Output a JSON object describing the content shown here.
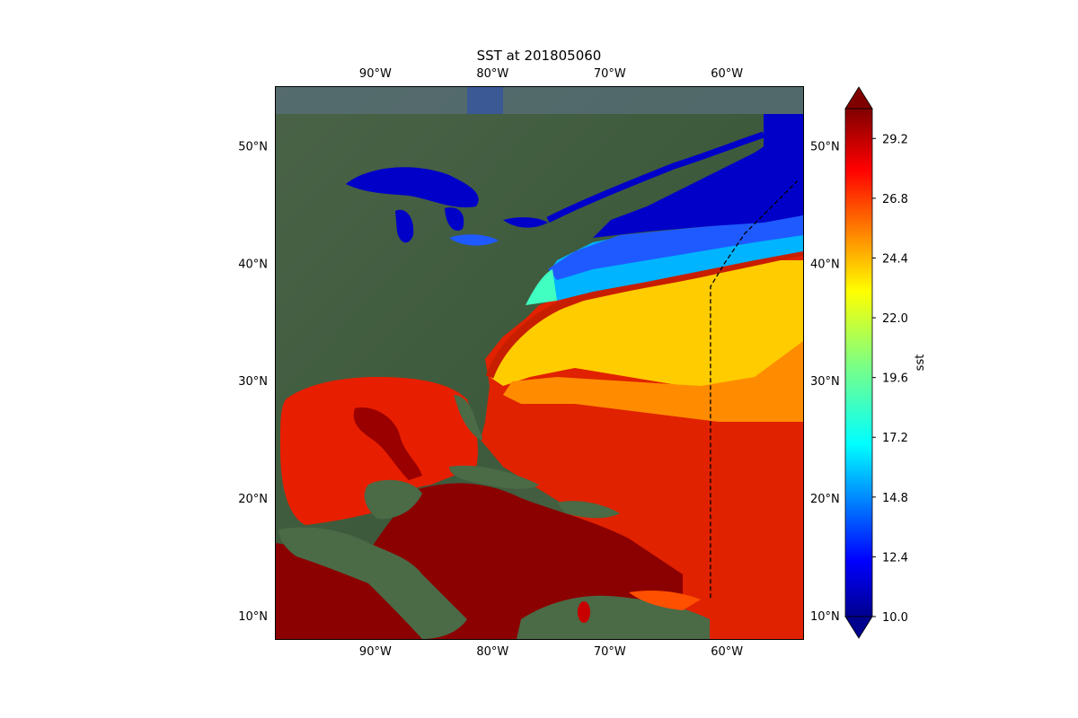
{
  "title": "SST at 201805060",
  "map": {
    "lon_range": [
      -98.5,
      -53.5
    ],
    "lat_range": [
      8,
      55
    ],
    "projection": "PlateCarree",
    "basemap": "satellite imagery (land), field overlay on ocean",
    "lon_ticks": [
      {
        "value": -90,
        "label": "90°W"
      },
      {
        "value": -80,
        "label": "80°W"
      },
      {
        "value": -70,
        "label": "70°W"
      },
      {
        "value": -60,
        "label": "60°W"
      }
    ],
    "lat_ticks": [
      {
        "value": 10,
        "label": "10°N"
      },
      {
        "value": 20,
        "label": "20°N"
      },
      {
        "value": 30,
        "label": "30°N"
      },
      {
        "value": 40,
        "label": "40°N"
      },
      {
        "value": 50,
        "label": "50°N"
      }
    ],
    "track": {
      "style": "dashed",
      "color": "#000000",
      "points": [
        [
          -61.4,
          11.5
        ],
        [
          -61.4,
          38.0
        ],
        [
          -60.2,
          40.0
        ],
        [
          -58.5,
          42.5
        ],
        [
          -56.0,
          45.0
        ],
        [
          -54.0,
          47.0
        ]
      ]
    },
    "colors": {
      "land": "#3f5a3e",
      "cold_ocean": "#0000c8",
      "warm_ocean": "#8b0000"
    }
  },
  "colorbar": {
    "label": "sst",
    "cmap": "jet",
    "min": 10.0,
    "max": 30.4,
    "extend": "both",
    "ticks": [
      {
        "value": 10.0,
        "label": "10.0"
      },
      {
        "value": 12.4,
        "label": "12.4"
      },
      {
        "value": 14.8,
        "label": "14.8"
      },
      {
        "value": 17.2,
        "label": "17.2"
      },
      {
        "value": 19.6,
        "label": "19.6"
      },
      {
        "value": 22.0,
        "label": "22.0"
      },
      {
        "value": 24.4,
        "label": "24.4"
      },
      {
        "value": 26.8,
        "label": "26.8"
      },
      {
        "value": 29.2,
        "label": "29.2"
      }
    ]
  }
}
